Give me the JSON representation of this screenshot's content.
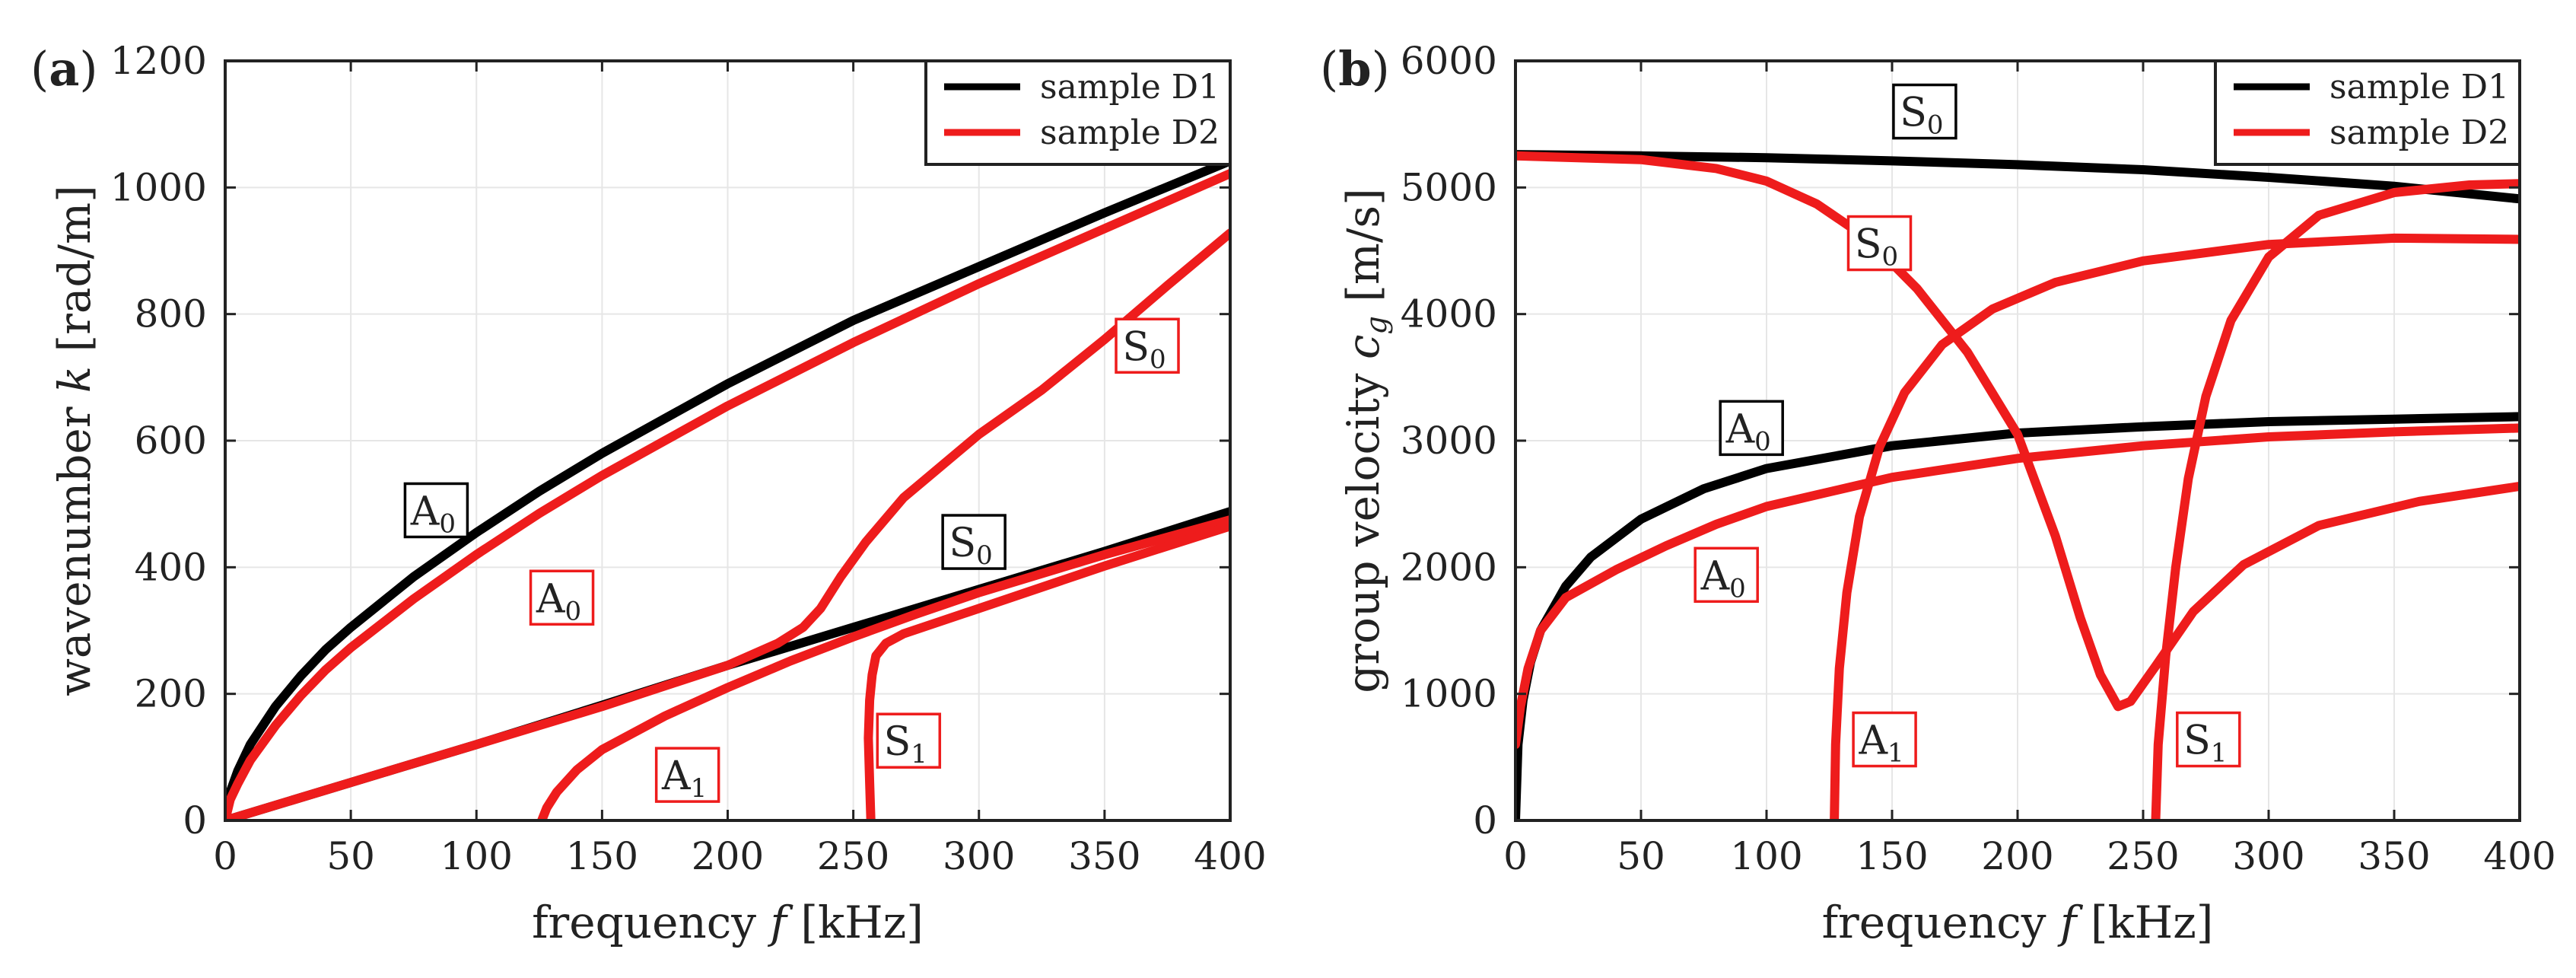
{
  "chart_data": [
    {
      "type": "line",
      "panel": "a",
      "panel_label": {
        "open": "(",
        "letter": "a",
        "close": ")"
      },
      "xlabel": {
        "pre": "frequency ",
        "var": "f",
        "post": " [kHz]"
      },
      "ylabel": {
        "pre": "wavenumber ",
        "var": "k",
        "post": " [rad/m]"
      },
      "xlim": [
        0,
        400
      ],
      "ylim": [
        0,
        1200
      ],
      "xticks": [
        0,
        50,
        100,
        150,
        200,
        250,
        300,
        350,
        400
      ],
      "yticks": [
        0,
        200,
        400,
        600,
        800,
        1000,
        1200
      ],
      "grid": true,
      "legend": {
        "position": "top-right",
        "entries": [
          {
            "label": "sample D1",
            "color": "#000000"
          },
          {
            "label": "sample D2",
            "color": "#ee1c1c"
          }
        ]
      },
      "series": [
        {
          "name": "sample D1 A0",
          "color": "#000000",
          "points": [
            [
              0,
              0
            ],
            [
              2,
              45
            ],
            [
              5,
              78
            ],
            [
              10,
              120
            ],
            [
              20,
              180
            ],
            [
              30,
              228
            ],
            [
              40,
              270
            ],
            [
              50,
              305
            ],
            [
              75,
              385
            ],
            [
              100,
              455
            ],
            [
              125,
              520
            ],
            [
              150,
              580
            ],
            [
              175,
              635
            ],
            [
              200,
              690
            ],
            [
              250,
              790
            ],
            [
              300,
              875
            ],
            [
              350,
              960
            ],
            [
              400,
              1042
            ]
          ]
        },
        {
          "name": "sample D1 S0",
          "color": "#000000",
          "points": [
            [
              0,
              0
            ],
            [
              50,
              60
            ],
            [
              100,
              120
            ],
            [
              150,
              182
            ],
            [
              200,
              245
            ],
            [
              250,
              305
            ],
            [
              300,
              365
            ],
            [
              350,
              425
            ],
            [
              400,
              488
            ]
          ]
        },
        {
          "name": "sample D2 A0",
          "color": "#ee1c1c",
          "points": [
            [
              0,
              0
            ],
            [
              2,
              33
            ],
            [
              5,
              58
            ],
            [
              10,
              95
            ],
            [
              20,
              150
            ],
            [
              30,
              197
            ],
            [
              40,
              238
            ],
            [
              50,
              273
            ],
            [
              75,
              350
            ],
            [
              100,
              420
            ],
            [
              125,
              485
            ],
            [
              150,
              545
            ],
            [
              175,
              600
            ],
            [
              200,
              655
            ],
            [
              250,
              755
            ],
            [
              300,
              848
            ],
            [
              350,
              935
            ],
            [
              400,
              1022
            ]
          ]
        },
        {
          "name": "sample D2 S0",
          "color": "#ee1c1c",
          "points": [
            [
              0,
              0
            ],
            [
              50,
              60
            ],
            [
              100,
              120
            ],
            [
              150,
              180
            ],
            [
              200,
              245
            ],
            [
              220,
              280
            ],
            [
              230,
              305
            ],
            [
              237,
              335
            ],
            [
              245,
              385
            ],
            [
              255,
              440
            ],
            [
              270,
              510
            ],
            [
              300,
              610
            ],
            [
              325,
              680
            ],
            [
              350,
              760
            ],
            [
              375,
              845
            ],
            [
              400,
              928
            ]
          ]
        },
        {
          "name": "sample D2 A1",
          "color": "#ee1c1c",
          "points": [
            [
              126,
              0
            ],
            [
              128,
              20
            ],
            [
              132,
              45
            ],
            [
              140,
              80
            ],
            [
              150,
              112
            ],
            [
              175,
              165
            ],
            [
              200,
              210
            ],
            [
              225,
              252
            ],
            [
              250,
              290
            ],
            [
              275,
              326
            ],
            [
              300,
              360
            ],
            [
              350,
              420
            ],
            [
              400,
              475
            ]
          ]
        },
        {
          "name": "sample D2 S1",
          "color": "#ee1c1c",
          "points": [
            [
              257,
              0
            ],
            [
              256.5,
              60
            ],
            [
              256,
              130
            ],
            [
              256.5,
              190
            ],
            [
              257.5,
              230
            ],
            [
              259,
              260
            ],
            [
              263,
              280
            ],
            [
              270,
              295
            ],
            [
              300,
              335
            ],
            [
              350,
              402
            ],
            [
              400,
              465
            ]
          ]
        }
      ],
      "annotations": [
        {
          "base": "A",
          "sub": "0",
          "color": "#000000",
          "x": 84,
          "y": 490
        },
        {
          "base": "A",
          "sub": "0",
          "color": "#ee1c1c",
          "x": 134,
          "y": 352
        },
        {
          "base": "S",
          "sub": "0",
          "color": "#000000",
          "x": 298,
          "y": 440
        },
        {
          "base": "S",
          "sub": "0",
          "color": "#ee1c1c",
          "x": 367,
          "y": 750
        },
        {
          "base": "A",
          "sub": "1",
          "color": "#ee1c1c",
          "x": 184,
          "y": 72
        },
        {
          "base": "S",
          "sub": "1",
          "color": "#ee1c1c",
          "x": 272,
          "y": 126
        }
      ]
    },
    {
      "type": "line",
      "panel": "b",
      "panel_label": {
        "open": "(",
        "letter": "b",
        "close": ")"
      },
      "xlabel": {
        "pre": "frequency ",
        "var": "f",
        "post": " [kHz]"
      },
      "ylabel": {
        "pre": "group velocity ",
        "var": "c",
        "sub": "g",
        "post": " [m/s]"
      },
      "xlim": [
        0,
        400
      ],
      "ylim": [
        0,
        6000
      ],
      "xticks": [
        0,
        50,
        100,
        150,
        200,
        250,
        300,
        350,
        400
      ],
      "yticks": [
        0,
        1000,
        2000,
        3000,
        4000,
        5000,
        6000
      ],
      "grid": true,
      "legend": {
        "position": "top-right",
        "entries": [
          {
            "label": "sample D1",
            "color": "#000000"
          },
          {
            "label": "sample D2",
            "color": "#ee1c1c"
          }
        ]
      },
      "series": [
        {
          "name": "sample D1 S0",
          "color": "#000000",
          "points": [
            [
              0,
              5260
            ],
            [
              50,
              5250
            ],
            [
              100,
              5235
            ],
            [
              150,
              5210
            ],
            [
              200,
              5180
            ],
            [
              250,
              5140
            ],
            [
              300,
              5080
            ],
            [
              350,
              5010
            ],
            [
              400,
              4910
            ]
          ]
        },
        {
          "name": "sample D1 A0",
          "color": "#000000",
          "points": [
            [
              0,
              0
            ],
            [
              1,
              600
            ],
            [
              3,
              950
            ],
            [
              6,
              1250
            ],
            [
              10,
              1500
            ],
            [
              20,
              1850
            ],
            [
              30,
              2080
            ],
            [
              50,
              2380
            ],
            [
              75,
              2620
            ],
            [
              100,
              2780
            ],
            [
              150,
              2960
            ],
            [
              200,
              3060
            ],
            [
              250,
              3110
            ],
            [
              300,
              3150
            ],
            [
              350,
              3170
            ],
            [
              400,
              3190
            ]
          ]
        },
        {
          "name": "sample D2 S0",
          "color": "#ee1c1c",
          "points": [
            [
              0,
              5250
            ],
            [
              50,
              5220
            ],
            [
              80,
              5150
            ],
            [
              100,
              5050
            ],
            [
              120,
              4870
            ],
            [
              140,
              4600
            ],
            [
              160,
              4200
            ],
            [
              180,
              3700
            ],
            [
              200,
              3050
            ],
            [
              215,
              2250
            ],
            [
              225,
              1600
            ],
            [
              233,
              1150
            ],
            [
              240,
              900
            ],
            [
              245,
              940
            ],
            [
              255,
              1220
            ],
            [
              270,
              1650
            ],
            [
              290,
              2020
            ],
            [
              320,
              2330
            ],
            [
              360,
              2520
            ],
            [
              400,
              2640
            ]
          ]
        },
        {
          "name": "sample D2 A0",
          "color": "#ee1c1c",
          "points": [
            [
              0,
              600
            ],
            [
              2,
              900
            ],
            [
              5,
              1200
            ],
            [
              10,
              1500
            ],
            [
              20,
              1760
            ],
            [
              40,
              1980
            ],
            [
              60,
              2170
            ],
            [
              80,
              2340
            ],
            [
              100,
              2480
            ],
            [
              150,
              2710
            ],
            [
              200,
              2860
            ],
            [
              250,
              2960
            ],
            [
              300,
              3030
            ],
            [
              350,
              3070
            ],
            [
              400,
              3100
            ]
          ]
        },
        {
          "name": "sample D2 A1",
          "color": "#ee1c1c",
          "points": [
            [
              127,
              0
            ],
            [
              127.5,
              600
            ],
            [
              129,
              1200
            ],
            [
              132,
              1800
            ],
            [
              137,
              2400
            ],
            [
              145,
              2950
            ],
            [
              155,
              3380
            ],
            [
              170,
              3760
            ],
            [
              190,
              4040
            ],
            [
              215,
              4250
            ],
            [
              250,
              4420
            ],
            [
              300,
              4550
            ],
            [
              350,
              4600
            ],
            [
              400,
              4590
            ]
          ]
        },
        {
          "name": "sample D2 S1",
          "color": "#ee1c1c",
          "points": [
            [
              255,
              0
            ],
            [
              256,
              600
            ],
            [
              259,
              1300
            ],
            [
              263,
              2000
            ],
            [
              268,
              2700
            ],
            [
              275,
              3350
            ],
            [
              285,
              3950
            ],
            [
              300,
              4450
            ],
            [
              320,
              4780
            ],
            [
              350,
              4960
            ],
            [
              380,
              5020
            ],
            [
              400,
              5030
            ]
          ]
        }
      ],
      "annotations": [
        {
          "base": "S",
          "sub": "0",
          "color": "#000000",
          "x": 163,
          "y": 5600
        },
        {
          "base": "S",
          "sub": "0",
          "color": "#ee1c1c",
          "x": 145,
          "y": 4560
        },
        {
          "base": "A",
          "sub": "0",
          "color": "#000000",
          "x": 94,
          "y": 3100
        },
        {
          "base": "A",
          "sub": "0",
          "color": "#ee1c1c",
          "x": 84,
          "y": 1940
        },
        {
          "base": "A",
          "sub": "1",
          "color": "#ee1c1c",
          "x": 147,
          "y": 640
        },
        {
          "base": "S",
          "sub": "1",
          "color": "#ee1c1c",
          "x": 276,
          "y": 640
        }
      ]
    }
  ]
}
